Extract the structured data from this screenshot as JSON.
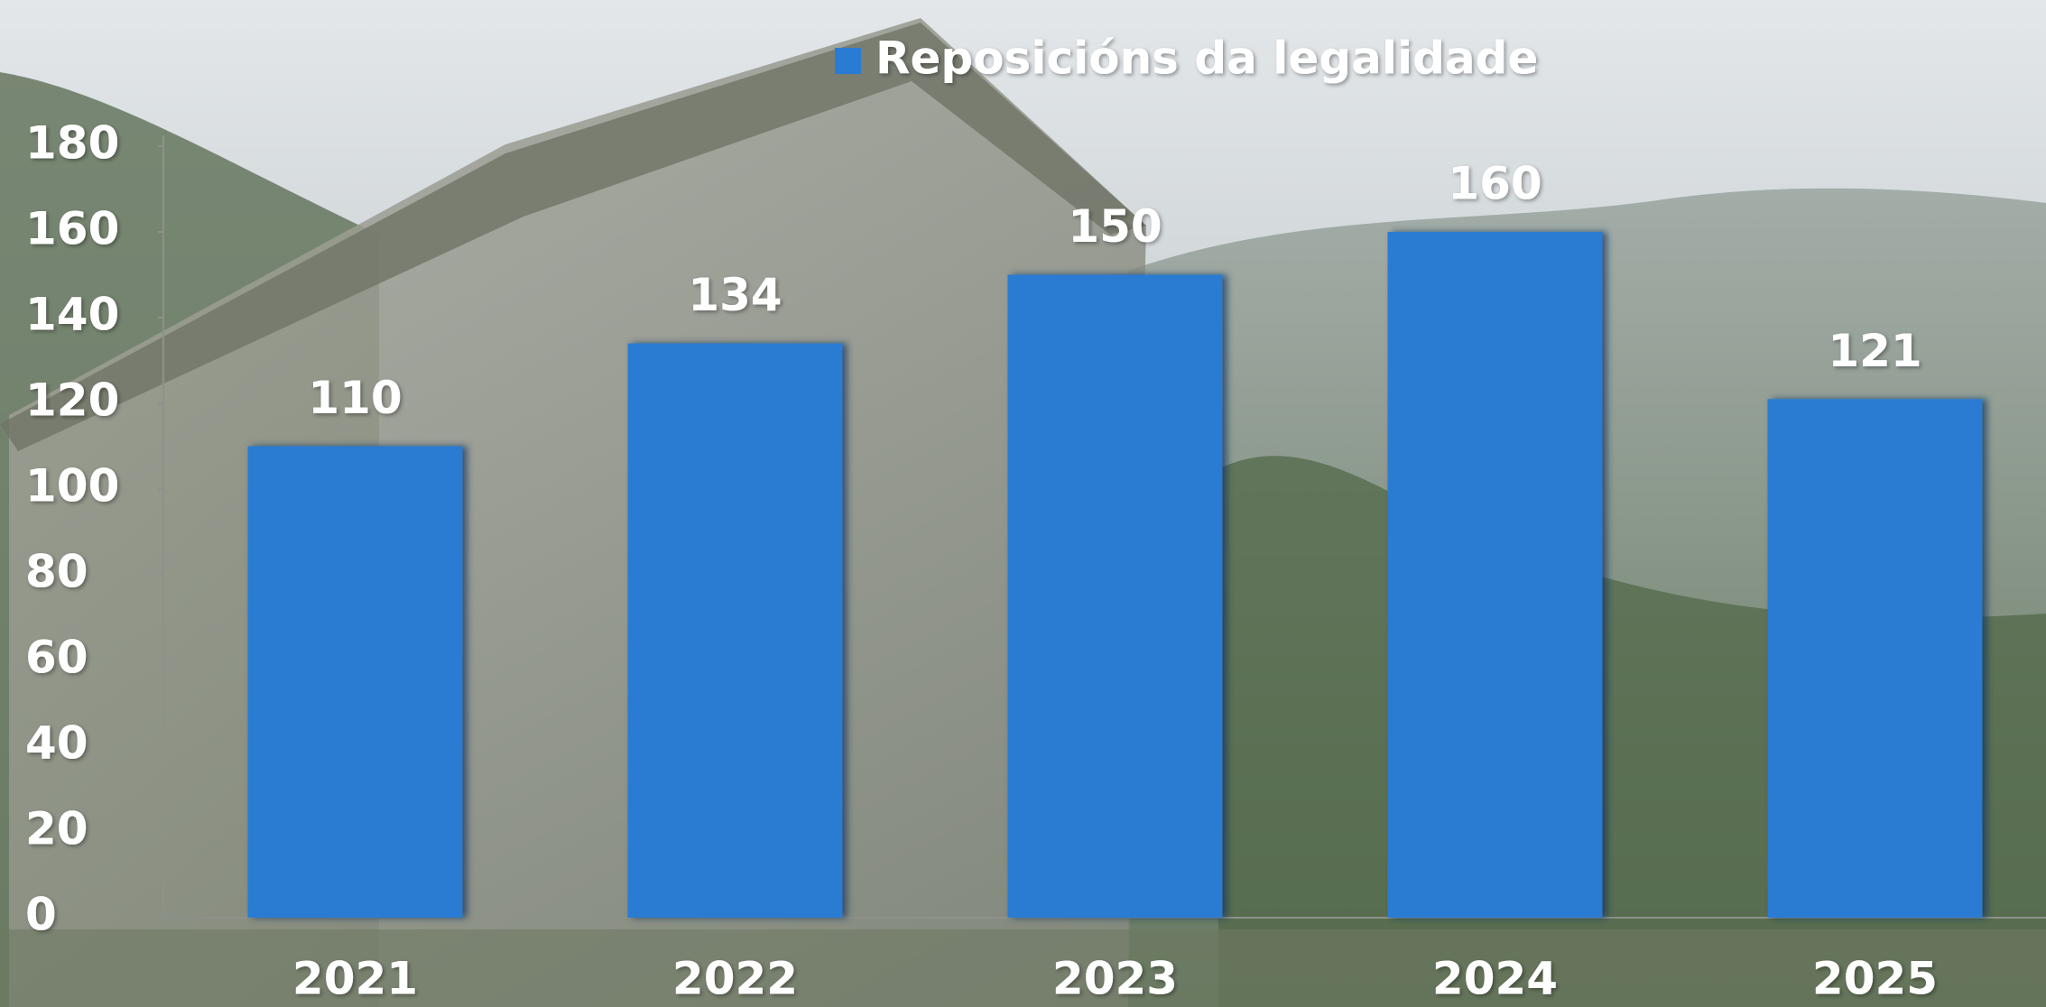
{
  "chart_data": {
    "type": "bar",
    "categories": [
      "2021",
      "2022",
      "2023",
      "2024",
      "2025"
    ],
    "series": [
      {
        "name": "Reposicións da legalidade",
        "color": "#2a7bd3",
        "values": [
          110,
          134,
          150,
          160,
          121
        ]
      }
    ],
    "ylim": [
      0,
      180
    ],
    "yticks": [
      0,
      20,
      40,
      60,
      80,
      100,
      120,
      140,
      160,
      180
    ],
    "legend": "top"
  }
}
